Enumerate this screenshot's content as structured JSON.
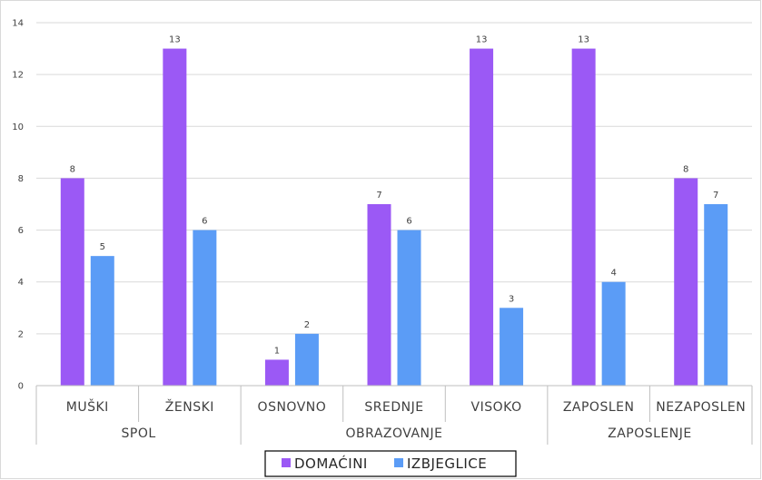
{
  "chart_data": {
    "type": "bar",
    "title": "",
    "xlabel": "",
    "ylabel": "",
    "ylim": [
      0,
      14
    ],
    "yticks": [
      0,
      2,
      4,
      6,
      8,
      10,
      12,
      14
    ],
    "grid": true,
    "legend_position": "bottom",
    "groups": [
      {
        "name": "SPOL",
        "categories": [
          "MUŠKI",
          "ŽENSKI"
        ]
      },
      {
        "name": "OBRAZOVANJE",
        "categories": [
          "OSNOVNO",
          "SREDNJE",
          "VISOKO"
        ]
      },
      {
        "name": "ZAPOSLENJE",
        "categories": [
          "ZAPOSLEN",
          "NEZAPOSLEN"
        ]
      }
    ],
    "categories": [
      "MUŠKI",
      "ŽENSKI",
      "OSNOVNO",
      "SREDNJE",
      "VISOKO",
      "ZAPOSLEN",
      "NEZAPOSLEN"
    ],
    "series": [
      {
        "name": "DOMAĆINI",
        "color": "#9b59f5",
        "values": [
          8,
          13,
          1,
          7,
          13,
          13,
          8
        ]
      },
      {
        "name": "IZBJEGLICE",
        "color": "#5b9cf6",
        "values": [
          5,
          6,
          2,
          6,
          3,
          4,
          7
        ]
      }
    ]
  }
}
